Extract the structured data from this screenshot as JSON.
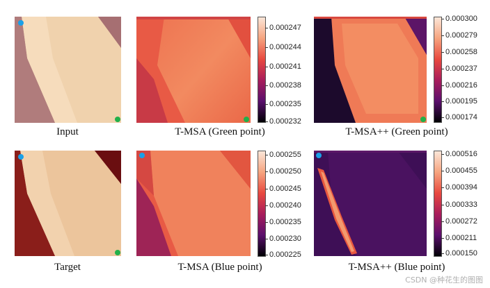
{
  "captions": {
    "input": "Input",
    "target": "Target",
    "msa_green": "T-MSA (Green point)",
    "msapp_green": "T-MSA++ (Green point)",
    "msa_blue": "T-MSA (Blue point)",
    "msapp_blue": "T-MSA++ (Blue point)"
  },
  "colorbars": {
    "msa_green": [
      "0.000247",
      "0.000244",
      "0.000241",
      "0.000238",
      "0.000235",
      "0.000232"
    ],
    "msapp_green": [
      "0.000300",
      "0.000279",
      "0.000258",
      "0.000237",
      "0.000216",
      "0.000195",
      "0.000174"
    ],
    "msa_blue": [
      "0.000255",
      "0.000250",
      "0.000245",
      "0.000240",
      "0.000235",
      "0.000230",
      "0.000225"
    ],
    "msapp_blue": [
      "0.000516",
      "0.000455",
      "0.000394",
      "0.000333",
      "0.000272",
      "0.000211",
      "0.000150"
    ]
  },
  "markers": {
    "blue": "#1aa0e8",
    "green": "#22b04a"
  },
  "watermark": "CSDN @种花生的图图"
}
